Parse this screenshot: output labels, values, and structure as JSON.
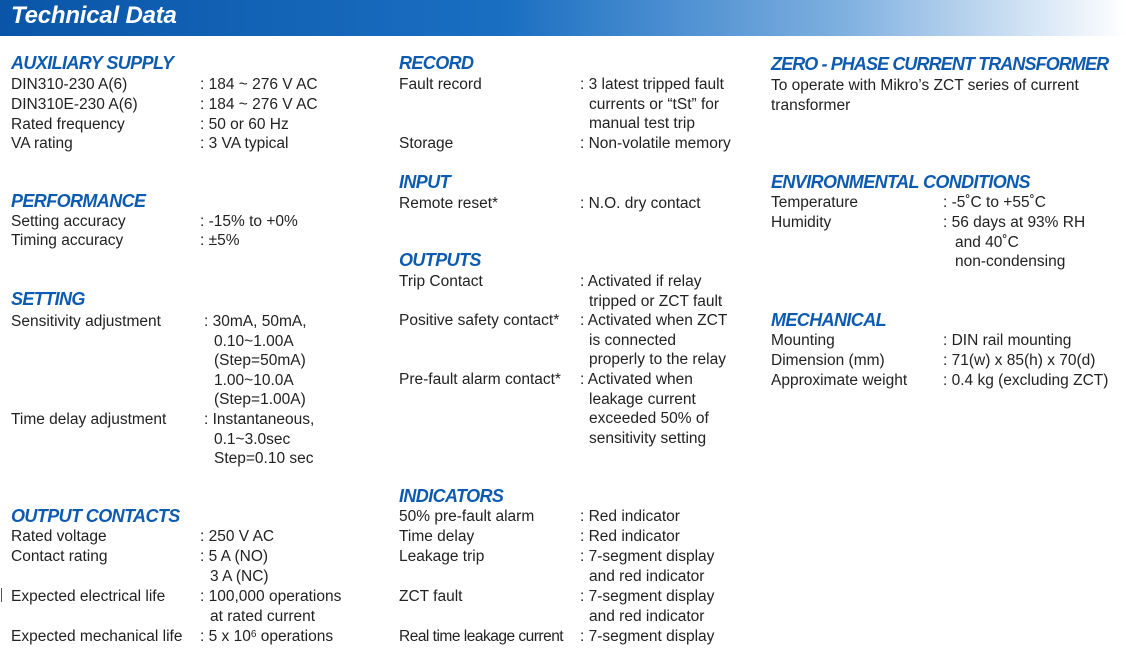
{
  "header": {
    "title": "Technical Data"
  },
  "aux": {
    "title": "AUXILIARY SUPPLY",
    "rows": [
      {
        "label": "DIN310-230 A(6)",
        "lines": [
          ": 184 ~ 276 V AC"
        ]
      },
      {
        "label": "DIN310E-230 A(6)",
        "lines": [
          ": 184 ~ 276 V AC"
        ]
      },
      {
        "label": "Rated frequency",
        "lines": [
          ": 50 or 60 Hz"
        ]
      },
      {
        "label": "VA rating",
        "lines": [
          ": 3 VA typical"
        ]
      }
    ]
  },
  "perf": {
    "title": "PERFORMANCE",
    "rows": [
      {
        "label": "Setting accuracy",
        "lines": [
          ": -15% to +0%"
        ]
      },
      {
        "label": "Timing accuracy",
        "lines": [
          ": ±5%"
        ]
      }
    ]
  },
  "setting": {
    "title": "SETTING",
    "rows": [
      {
        "label": "Sensitivity adjustment",
        "lines": [
          ":  30mA, 50mA,",
          "0.10~1.00A",
          "(Step=50mA)",
          "1.00~10.0A",
          "(Step=1.00A)"
        ]
      },
      {
        "label": "Time delay adjustment",
        "lines": [
          ": Instantaneous,",
          "0.1~3.0sec",
          "Step=0.10 sec"
        ]
      }
    ]
  },
  "outcontacts": {
    "title": "OUTPUT CONTACTS",
    "rows": [
      {
        "label": "Rated voltage",
        "lines": [
          ": 250 V AC"
        ]
      },
      {
        "label": "Contact rating",
        "lines": [
          ": 5 A (NO)",
          "3 A (NC)"
        ]
      },
      {
        "label": "Expected electrical life",
        "lines": [
          ": 100,000 operations",
          "at rated current"
        ]
      },
      {
        "label": "Expected mechanical life",
        "value_prefix": ": 5 x 10",
        "value_sup": "6",
        "value_suffix": " operations"
      }
    ]
  },
  "record": {
    "title": "RECORD",
    "rows": [
      {
        "label": "Fault record",
        "lines": [
          ": 3 latest tripped fault",
          "currents or “tSt” for",
          "manual test trip"
        ]
      },
      {
        "label": "Storage",
        "lines": [
          ": Non-volatile memory"
        ]
      }
    ]
  },
  "input": {
    "title": "INPUT",
    "rows": [
      {
        "label": "Remote reset*",
        "lines": [
          ": N.O. dry contact"
        ]
      }
    ]
  },
  "outputs": {
    "title": "OUTPUTS",
    "rows": [
      {
        "label": "Trip Contact",
        "lines": [
          ": Activated if relay",
          "tripped or ZCT fault"
        ]
      },
      {
        "label": "Positive safety contact*",
        "lines": [
          ": Activated when ZCT",
          "is connected",
          "properly to the relay"
        ]
      },
      {
        "label": "Pre-fault alarm contact*",
        "lines": [
          ": Activated when",
          "leakage current",
          "exceeded 50% of",
          "sensitivity setting"
        ]
      }
    ]
  },
  "indicators": {
    "title": "INDICATORS",
    "rows": [
      {
        "label": "50% pre-fault alarm",
        "lines": [
          ": Red indicator"
        ]
      },
      {
        "label": "Time delay",
        "lines": [
          ": Red indicator"
        ]
      },
      {
        "label": "Leakage trip",
        "lines": [
          ": 7-segment display",
          "and red indicator"
        ]
      },
      {
        "label": "ZCT fault",
        "lines": [
          ": 7-segment display",
          "and red indicator"
        ]
      },
      {
        "label": "Real time leakage current",
        "lines": [
          ": 7-segment display"
        ]
      }
    ]
  },
  "zct": {
    "title": "ZERO - PHASE CURRENT TRANSFORMER",
    "text": "To operate with Mikro’s ZCT series of current transformer"
  },
  "env": {
    "title": "ENVIRONMENTAL CONDITIONS",
    "rows": [
      {
        "label": "Temperature",
        "lines": [
          ": -5˚C to +55˚C"
        ]
      },
      {
        "label": "Humidity",
        "lines": [
          ": 56 days at 93% RH",
          "and  40˚C",
          "non-condensing"
        ]
      }
    ]
  },
  "mech": {
    "title": "MECHANICAL",
    "rows": [
      {
        "label": "Mounting",
        "lines": [
          ": DIN rail mounting"
        ]
      },
      {
        "label": "Dimension (mm)",
        "lines": [
          ": 71(w) x 85(h) x 70(d)"
        ]
      },
      {
        "label": "Approximate weight",
        "lines": [
          ": 0.4 kg (excluding ZCT)"
        ]
      }
    ]
  }
}
